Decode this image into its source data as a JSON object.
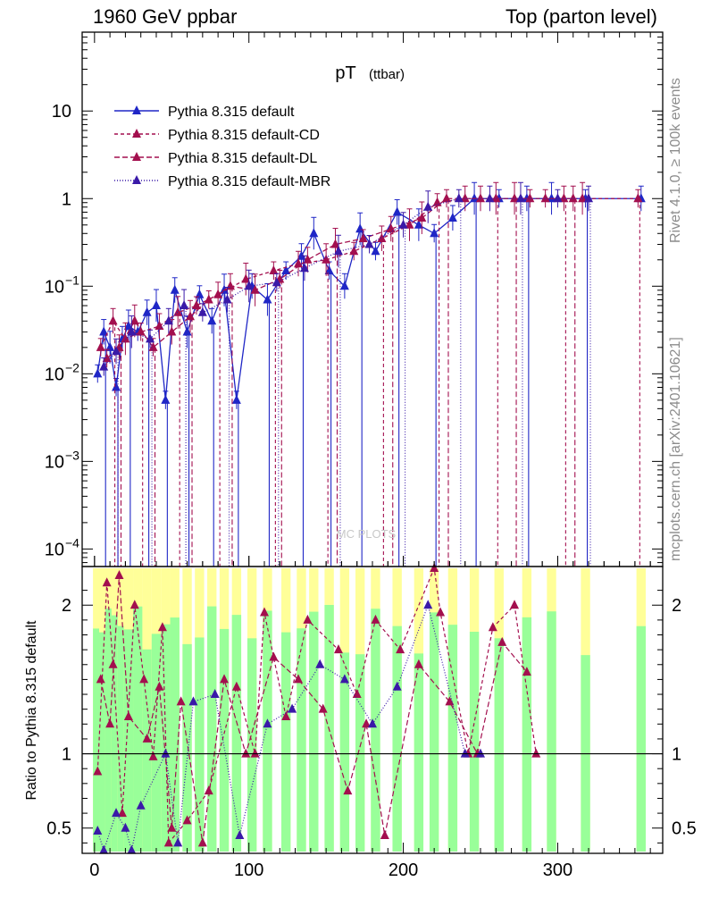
{
  "header": {
    "left": "1960 GeV ppbar",
    "right": "Top (parton level)"
  },
  "side_labels": {
    "rivet": "Rivet 4.1.0, ≥ 100k events",
    "mcplots": "mcplots.cern.ch [arXiv:2401.10621]"
  },
  "chart_data": {
    "type": "line",
    "title": "pT",
    "title_sub": "(ttbar)",
    "ylabel_ratio": "Ratio to Pythia 8.315 default",
    "x_range": [
      -8,
      368
    ],
    "y_range_main_log10": [
      -4.2,
      1.9
    ],
    "y_range_ratio": [
      0.33,
      2.26
    ],
    "x_ticks": [
      0,
      100,
      200,
      300
    ],
    "main_y_ticks": [
      {
        "label": "10",
        "log": 1
      },
      {
        "label": "1",
        "log": 0
      },
      {
        "label": "10",
        "exp": "−1",
        "log": -1
      },
      {
        "label": "10",
        "exp": "−2",
        "log": -2
      },
      {
        "label": "10",
        "exp": "−3",
        "log": -3
      },
      {
        "label": "10",
        "exp": "−4",
        "log": -4
      }
    ],
    "ratio_y_ticks": [
      {
        "label": "2",
        "value": 2
      },
      {
        "label": "1",
        "value": 1
      },
      {
        "label": "0.5",
        "value": 0.5
      }
    ],
    "watermark": "MC PLOTS",
    "series": [
      {
        "name": "Pythia 8.315 default",
        "color": "#1f26c6",
        "dash": "",
        "x": [
          2,
          6,
          10,
          14,
          18,
          22,
          28,
          34,
          40,
          46,
          52,
          60,
          68,
          76,
          84,
          92,
          102,
          112,
          124,
          134,
          142,
          152,
          162,
          172,
          182,
          196,
          210,
          220,
          232,
          246,
          262,
          280,
          296,
          318,
          354
        ],
        "y": [
          0.01,
          0.03,
          0.02,
          0.007,
          0.025,
          0.035,
          0.03,
          0.05,
          0.06,
          0.005,
          0.09,
          0.03,
          0.08,
          0.04,
          0.09,
          0.005,
          0.1,
          0.07,
          0.15,
          0.22,
          0.4,
          0.15,
          0.1,
          0.45,
          0.25,
          0.7,
          0.5,
          0.4,
          0.6,
          1.0,
          1.0,
          1.0,
          1.0,
          1.0,
          1.0
        ]
      },
      {
        "name": "Pythia 8.315 default-CD",
        "color": "#a30f4e",
        "dash": "4,3",
        "x": [
          4,
          12,
          20,
          30,
          42,
          54,
          66,
          80,
          98,
          116,
          132,
          150,
          168,
          186,
          204,
          222,
          240,
          260,
          282,
          304,
          316,
          352
        ],
        "y": [
          0.02,
          0.04,
          0.025,
          0.03,
          0.035,
          0.05,
          0.06,
          0.08,
          0.12,
          0.15,
          0.18,
          0.2,
          0.25,
          0.35,
          0.5,
          0.9,
          1.0,
          1.0,
          1.0,
          1.0,
          1.0,
          1.0
        ]
      },
      {
        "name": "Pythia 8.315 default-DL",
        "color": "#a30f4e",
        "dash": "6,3",
        "x": [
          8,
          16,
          26,
          38,
          50,
          62,
          74,
          88,
          104,
          120,
          138,
          156,
          174,
          192,
          212,
          228,
          250,
          272,
          292,
          310
        ],
        "y": [
          0.015,
          0.02,
          0.04,
          0.02,
          0.03,
          0.045,
          0.07,
          0.1,
          0.09,
          0.12,
          0.2,
          0.3,
          0.35,
          0.45,
          0.6,
          1.0,
          1.0,
          1.0,
          1.0,
          1.0
        ]
      },
      {
        "name": "Pythia 8.315 default-MBR",
        "color": "#3a1aa8",
        "dash": "1,2",
        "x": [
          6,
          14,
          24,
          36,
          48,
          58,
          70,
          86,
          100,
          118,
          136,
          158,
          178,
          200,
          216,
          236,
          256,
          276,
          300,
          320
        ],
        "y": [
          0.012,
          0.018,
          0.03,
          0.025,
          0.04,
          0.06,
          0.05,
          0.07,
          0.1,
          0.11,
          0.16,
          0.25,
          0.3,
          0.5,
          0.8,
          1.0,
          1.0,
          1.0,
          1.0,
          1.0
        ]
      }
    ],
    "ratio_series": [
      {
        "name": "Pythia 8.315 default-CD",
        "x": [
          2,
          8,
          12,
          18,
          26,
          32,
          38,
          44,
          48,
          60,
          74,
          92,
          104,
          110,
          124,
          138,
          158,
          170,
          182,
          198,
          220,
          224,
          242,
          258,
          272,
          286
        ],
        "y": [
          0.88,
          2.15,
          1.6,
          0.6,
          2.0,
          1.5,
          0.98,
          1.85,
          0.4,
          0.55,
          0.75,
          1.45,
          1.0,
          1.95,
          1.25,
          1.9,
          1.7,
          1.4,
          1.9,
          1.7,
          2.3,
          1.95,
          1.0,
          1.85,
          2.0,
          1.0
        ]
      },
      {
        "name": "Pythia 8.315 default-DL",
        "x": [
          4,
          10,
          16,
          22,
          34,
          42,
          50,
          56,
          70,
          84,
          98,
          116,
          132,
          148,
          164,
          176,
          188,
          210,
          230,
          248,
          264,
          280
        ],
        "y": [
          1.5,
          1.2,
          2.2,
          1.25,
          1.1,
          1.45,
          0.5,
          1.35,
          0.4,
          1.5,
          1.0,
          1.65,
          1.5,
          1.3,
          0.75,
          1.2,
          0.45,
          1.6,
          1.35,
          1.0,
          1.75,
          1.55
        ]
      },
      {
        "name": "Pythia 8.315 default-MBR",
        "x": [
          2,
          6,
          14,
          20,
          24,
          30,
          46,
          54,
          64,
          78,
          94,
          112,
          128,
          146,
          162,
          180,
          196,
          216,
          240,
          250
        ],
        "y": [
          0.48,
          0.35,
          0.6,
          0.5,
          0.35,
          0.65,
          1.0,
          0.4,
          1.35,
          1.4,
          0.45,
          1.2,
          1.3,
          1.6,
          1.5,
          1.2,
          1.45,
          2.0,
          1.0,
          1.0
        ]
      }
    ]
  }
}
